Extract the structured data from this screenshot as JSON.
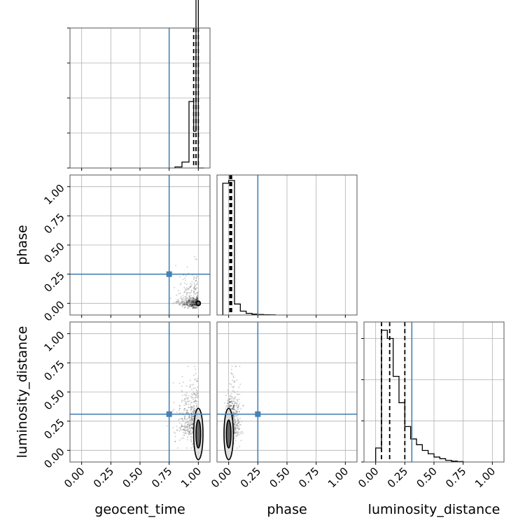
{
  "chart_data": {
    "type": "corner",
    "parameters": [
      "geocent_time",
      "phase",
      "luminosity_distance"
    ],
    "axis_labels": {
      "x": [
        "geocent_time",
        "phase",
        "luminosity_distance"
      ],
      "y": [
        "phase",
        "luminosity_distance"
      ]
    },
    "tick_values": [
      0.0,
      0.25,
      0.5,
      0.75,
      1.0
    ],
    "tick_labels": [
      "0.00",
      "0.25",
      "0.50",
      "0.75",
      "1.00"
    ],
    "axis_range": [
      -0.1,
      1.1
    ],
    "grid": true,
    "truth_color": "#4682b4",
    "truths": {
      "geocent_time": 0.75,
      "phase": 0.25,
      "luminosity_distance": 0.31
    },
    "quantiles": {
      "geocent_time": [
        0.96,
        0.98,
        1.0
      ],
      "phase": [
        0.01,
        0.015,
        0.025
      ],
      "luminosity_distance": [
        0.05,
        0.12,
        0.25
      ]
    },
    "histograms": {
      "geocent_time": {
        "bin_edges": [
          0.8,
          0.86,
          0.92,
          0.96,
          0.98,
          1.0,
          1.05
        ],
        "counts": [
          0.03,
          0.17,
          1.9,
          1.05,
          5.3,
          0
        ]
      },
      "phase": {
        "bin_edges": [
          -0.05,
          0.0,
          0.05,
          0.1,
          0.15,
          0.2,
          0.25,
          0.3,
          0.35,
          0.4
        ],
        "counts": [
          2.4,
          2.45,
          0.2,
          0.07,
          0.03,
          0.015,
          0.01,
          0.005,
          0.003
        ]
      },
      "luminosity_distance": {
        "bin_edges": [
          0.0,
          0.05,
          0.1,
          0.15,
          0.2,
          0.25,
          0.3,
          0.35,
          0.4,
          0.45,
          0.5,
          0.55,
          0.6,
          0.65,
          0.7,
          0.75
        ],
        "counts": [
          0.17,
          1.6,
          1.5,
          1.04,
          0.72,
          0.43,
          0.28,
          0.21,
          0.14,
          0.1,
          0.06,
          0.04,
          0.02,
          0.01,
          0.005
        ]
      }
    },
    "histogram_y_ticks": {
      "geocent_time": [
        0,
        1,
        2,
        3,
        4
      ],
      "luminosity_distance": [
        0,
        0.5,
        1.0,
        1.5
      ]
    },
    "histogram_y_range": {
      "geocent_time": [
        0,
        4.0
      ],
      "phase": [
        0,
        2.55
      ],
      "luminosity_distance": [
        0,
        1.7
      ]
    },
    "contours_2d": {
      "phase_vs_geocent_time": {
        "center": [
          1.0,
          0.0
        ],
        "level_widths": [
          [
            0.012,
            0.02
          ],
          [
            0.006,
            0.012
          ]
        ],
        "scatter_x_range": [
          0.6,
          1.02
        ],
        "scatter_y_range": [
          -0.04,
          0.4
        ]
      },
      "luminosity_distance_vs_geocent_time": {
        "center": [
          1.0,
          0.14
        ],
        "level_widths": [
          [
            0.04,
            0.22
          ],
          [
            0.02,
            0.12
          ]
        ],
        "scatter_x_range": [
          0.6,
          1.02
        ],
        "scatter_y_range": [
          0.02,
          0.72
        ]
      },
      "luminosity_distance_vs_phase": {
        "center": [
          0.0,
          0.14
        ],
        "level_widths": [
          [
            0.04,
            0.22
          ],
          [
            0.02,
            0.12
          ]
        ],
        "scatter_x_range": [
          -0.05,
          0.45
        ],
        "scatter_y_range": [
          0.02,
          0.72
        ]
      }
    }
  }
}
